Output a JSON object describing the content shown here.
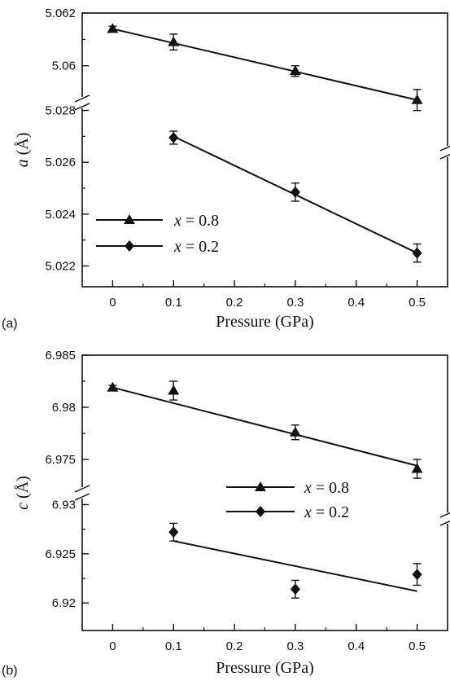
{
  "chart_data": [
    {
      "type": "scatter",
      "panel_label": "(a)",
      "xlabel": "Pressure (GPa)",
      "ylabel": "a (Å)",
      "ylabel_var": "a",
      "ylabel_unit": " (Å)",
      "xlim": [
        -0.05,
        0.55
      ],
      "xticks": [
        "0",
        "0.1",
        "0.2",
        "0.3",
        "0.4",
        "0.5"
      ],
      "broken_y_axis": true,
      "y_segments": [
        {
          "name": "upper",
          "ylim": [
            5.0586,
            5.062
          ],
          "yticks": [
            "5.062",
            "5.06"
          ]
        },
        {
          "name": "lower",
          "ylim": [
            5.0212,
            5.0283
          ],
          "yticks": [
            "5.028",
            "5.026",
            "5.024",
            "5.022"
          ]
        }
      ],
      "legend": {
        "placement": "lower-left",
        "entries": [
          {
            "var": "x",
            "text": " = 0.8",
            "marker": "triangle"
          },
          {
            "var": "x",
            "text": " = 0.2",
            "marker": "diamond"
          }
        ]
      },
      "series": [
        {
          "name": "x = 0.8",
          "marker": "triangle",
          "segment": "upper",
          "x": [
            0,
            0.1,
            0.3,
            0.5
          ],
          "y": [
            5.0614,
            5.0609,
            5.0598,
            5.0587
          ],
          "yerr": [
            0.0001,
            0.0003,
            0.0002,
            0.0004
          ],
          "fit": {
            "x": [
              0,
              0.5
            ],
            "y": [
              5.0614,
              5.0587
            ]
          }
        },
        {
          "name": "x = 0.2",
          "marker": "diamond",
          "segment": "lower",
          "x": [
            0.1,
            0.3,
            0.5
          ],
          "y": [
            5.02695,
            5.02485,
            5.0225
          ],
          "yerr": [
            0.00025,
            0.00035,
            0.00035
          ],
          "fit": {
            "x": [
              0.1,
              0.5
            ],
            "y": [
              5.027,
              5.0225
            ]
          }
        }
      ]
    },
    {
      "type": "scatter",
      "panel_label": "(b)",
      "xlabel": "Pressure (GPa)",
      "ylabel": "c (Å)",
      "ylabel_var": "c",
      "ylabel_unit": " (Å)",
      "xlim": [
        -0.05,
        0.55
      ],
      "xticks": [
        "0",
        "0.1",
        "0.2",
        "0.3",
        "0.4",
        "0.5"
      ],
      "broken_y_axis": true,
      "y_segments": [
        {
          "name": "upper",
          "ylim": [
            6.9718,
            6.985
          ],
          "yticks": [
            "6.985",
            "6.98",
            "6.975"
          ]
        },
        {
          "name": "lower",
          "ylim": [
            6.9172,
            6.9312
          ],
          "yticks": [
            "6.93",
            "6.925",
            "6.92"
          ]
        }
      ],
      "legend": {
        "placement": "center-right",
        "entries": [
          {
            "var": "x",
            "text": " = 0.8",
            "marker": "triangle"
          },
          {
            "var": "x",
            "text": " = 0.2",
            "marker": "diamond"
          }
        ]
      },
      "series": [
        {
          "name": "x = 0.8",
          "marker": "triangle",
          "segment": "upper",
          "x": [
            0,
            0.1,
            0.3,
            0.5
          ],
          "y": [
            6.9819,
            6.9816,
            6.9776,
            6.9741
          ],
          "yerr": [
            0.0002,
            0.0009,
            0.0007,
            0.0009
          ],
          "fit": {
            "x": [
              0,
              0.5
            ],
            "y": [
              6.9819,
              6.9744
            ]
          }
        },
        {
          "name": "x = 0.2",
          "marker": "diamond",
          "segment": "lower",
          "x": [
            0.1,
            0.3,
            0.5
          ],
          "y": [
            6.9272,
            6.9214,
            6.9229
          ],
          "yerr": [
            0.0009,
            0.0009,
            0.0011
          ],
          "fit": {
            "x": [
              0.1,
              0.5
            ],
            "y": [
              6.9263,
              6.9212
            ]
          }
        }
      ]
    }
  ]
}
